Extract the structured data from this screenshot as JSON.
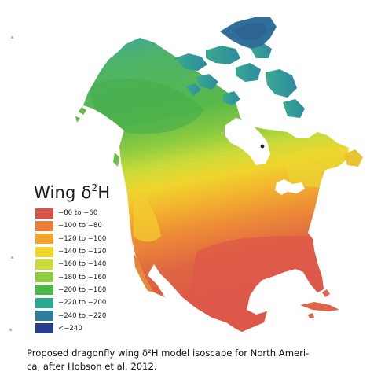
{
  "legend": {
    "title": "Wing δ²H",
    "title_base": "Wing δ",
    "title_sup": "2",
    "title_tail": "H",
    "items": [
      {
        "label": "−80 to −60",
        "color": "#d9534a"
      },
      {
        "label": "−100 to −80",
        "color": "#ea7e3a"
      },
      {
        "label": "−120 to −100",
        "color": "#f3a52d"
      },
      {
        "label": "−140 to −120",
        "color": "#f2d52c"
      },
      {
        "label": "−160 to −140",
        "color": "#c9dc3a"
      },
      {
        "label": "−180 to −160",
        "color": "#8dcb3f"
      },
      {
        "label": "−200 to −180",
        "color": "#4eb648"
      },
      {
        "label": "−220 to −200",
        "color": "#2aa98f"
      },
      {
        "label": "−240 to −220",
        "color": "#2b7f9a"
      },
      {
        "label": "<−240",
        "color": "#273f8f"
      }
    ]
  },
  "caption": {
    "line1": "Proposed dragonfly wing δ²H model isoscape for North Ameri-",
    "line2": "ca, after Hobson et al. 2012."
  }
}
